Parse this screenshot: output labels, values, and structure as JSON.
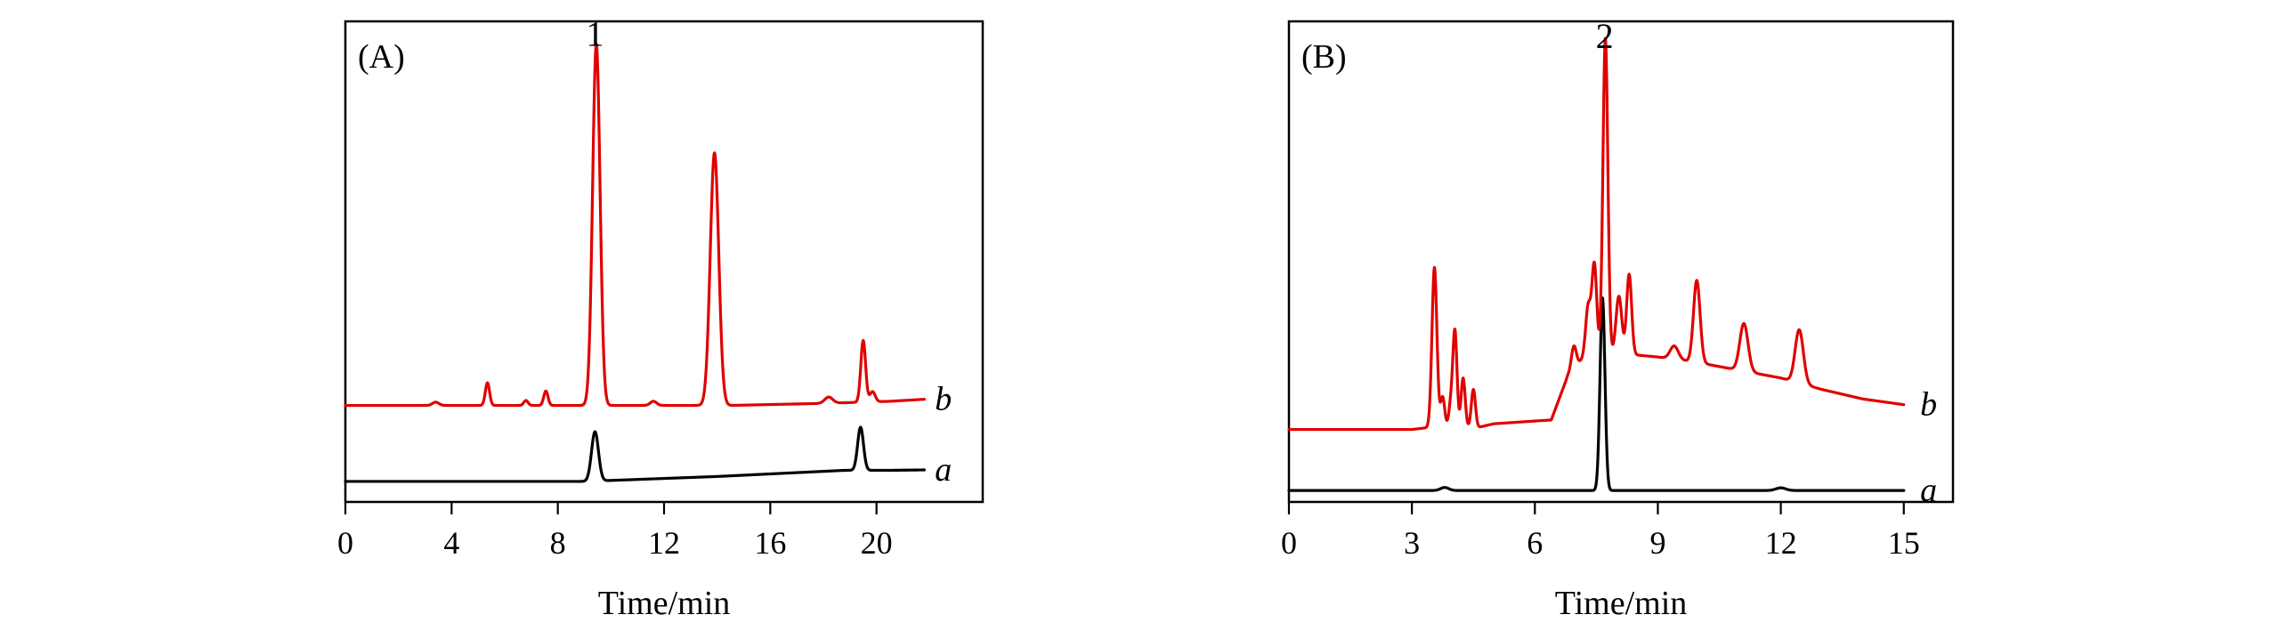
{
  "colors": {
    "trace_a": "#000000",
    "trace_b": "#e00000",
    "frame": "#000000"
  },
  "chart_data": [
    {
      "type": "line",
      "panel_label": "(A)",
      "xlabel": "Time/min",
      "ylabel": "",
      "xlim": [
        0,
        24
      ],
      "ylim": [
        -0.5,
        11.2
      ],
      "xticks": [
        0,
        4,
        8,
        12,
        16,
        20
      ],
      "tick_labels": [
        "0",
        "4",
        "8",
        "12",
        "16",
        "20"
      ],
      "grid": false,
      "annotations": [
        {
          "text": "1",
          "x": 9.4,
          "y": 10.6
        }
      ],
      "series": [
        {
          "trace": "a",
          "label": "a",
          "color": "#000000",
          "baseline": [
            [
              0,
              0.0
            ],
            [
              9.0,
              0.0
            ],
            [
              14,
              0.12
            ],
            [
              18.8,
              0.27
            ],
            [
              20.5,
              0.27
            ],
            [
              21.8,
              0.28
            ]
          ],
          "peaks": [
            {
              "t": 9.4,
              "h": 1.2,
              "w": 0.13
            },
            {
              "t": 19.4,
              "h": 1.05,
              "w": 0.11
            }
          ],
          "label_x": 22.2
        },
        {
          "trace": "b",
          "label": "b",
          "color": "#e00000",
          "baseline": [
            [
              0,
              1.85
            ],
            [
              3.0,
              1.85
            ],
            [
              12,
              1.85
            ],
            [
              14.5,
              1.85
            ],
            [
              18,
              1.9
            ],
            [
              20.5,
              1.95
            ],
            [
              21.8,
              2.0
            ]
          ],
          "peaks": [
            {
              "t": 3.4,
              "h": 0.08,
              "w": 0.12
            },
            {
              "t": 5.35,
              "h": 0.55,
              "w": 0.08
            },
            {
              "t": 6.8,
              "h": 0.12,
              "w": 0.08
            },
            {
              "t": 7.55,
              "h": 0.35,
              "w": 0.08
            },
            {
              "t": 9.45,
              "h": 8.8,
              "w": 0.14
            },
            {
              "t": 11.6,
              "h": 0.1,
              "w": 0.12
            },
            {
              "t": 13.9,
              "h": 6.15,
              "w": 0.16
            },
            {
              "t": 18.2,
              "h": 0.15,
              "w": 0.15
            },
            {
              "t": 19.5,
              "h": 1.5,
              "w": 0.09
            },
            {
              "t": 19.85,
              "h": 0.25,
              "w": 0.1
            }
          ],
          "label_x": 22.2
        }
      ]
    },
    {
      "type": "line",
      "panel_label": "(B)",
      "xlabel": "Time/min",
      "ylabel": "",
      "xlim": [
        0,
        16.2
      ],
      "ylim": [
        -0.3,
        12.3
      ],
      "xticks": [
        0,
        3,
        6,
        9,
        12,
        15
      ],
      "tick_labels": [
        "0",
        "3",
        "6",
        "9",
        "12",
        "15"
      ],
      "grid": false,
      "annotations": [
        {
          "text": "2",
          "x": 7.7,
          "y": 11.6
        }
      ],
      "series": [
        {
          "trace": "a",
          "label": "a",
          "color": "#000000",
          "baseline": [
            [
              0,
              0.0
            ],
            [
              15,
              0.0
            ]
          ],
          "peaks": [
            {
              "t": 3.8,
              "h": 0.08,
              "w": 0.1
            },
            {
              "t": 7.65,
              "h": 5.05,
              "w": 0.06
            },
            {
              "t": 12.0,
              "h": 0.07,
              "w": 0.12
            }
          ],
          "label_x": 15.4
        },
        {
          "trace": "b",
          "label": "b",
          "color": "#e00000",
          "baseline": [
            [
              0,
              1.6
            ],
            [
              3.0,
              1.6
            ],
            [
              3.4,
              1.65
            ],
            [
              4.6,
              1.65
            ],
            [
              5.0,
              1.75
            ],
            [
              6.4,
              1.85
            ],
            [
              6.8,
              3.0
            ],
            [
              7.2,
              3.5
            ],
            [
              8.0,
              3.6
            ],
            [
              9.0,
              3.5
            ],
            [
              10.0,
              3.35
            ],
            [
              11.0,
              3.15
            ],
            [
              12.0,
              2.95
            ],
            [
              13.0,
              2.65
            ],
            [
              14.0,
              2.4
            ],
            [
              15.0,
              2.25
            ]
          ],
          "peaks": [
            {
              "t": 3.55,
              "h": 4.2,
              "w": 0.06
            },
            {
              "t": 3.75,
              "h": 0.8,
              "w": 0.05
            },
            {
              "t": 3.95,
              "h": 0.6,
              "w": 0.05
            },
            {
              "t": 4.05,
              "h": 2.5,
              "w": 0.05
            },
            {
              "t": 4.25,
              "h": 1.3,
              "w": 0.05
            },
            {
              "t": 4.5,
              "h": 1.0,
              "w": 0.05
            },
            {
              "t": 6.95,
              "h": 0.6,
              "w": 0.06
            },
            {
              "t": 7.3,
              "h": 1.3,
              "w": 0.06
            },
            {
              "t": 7.45,
              "h": 2.4,
              "w": 0.06
            },
            {
              "t": 7.72,
              "h": 8.3,
              "w": 0.06
            },
            {
              "t": 8.05,
              "h": 1.5,
              "w": 0.07
            },
            {
              "t": 8.3,
              "h": 2.1,
              "w": 0.06
            },
            {
              "t": 9.4,
              "h": 0.35,
              "w": 0.1
            },
            {
              "t": 9.95,
              "h": 2.15,
              "w": 0.08
            },
            {
              "t": 11.1,
              "h": 1.25,
              "w": 0.1
            },
            {
              "t": 12.45,
              "h": 1.4,
              "w": 0.1
            }
          ],
          "label_x": 15.4
        }
      ]
    }
  ]
}
